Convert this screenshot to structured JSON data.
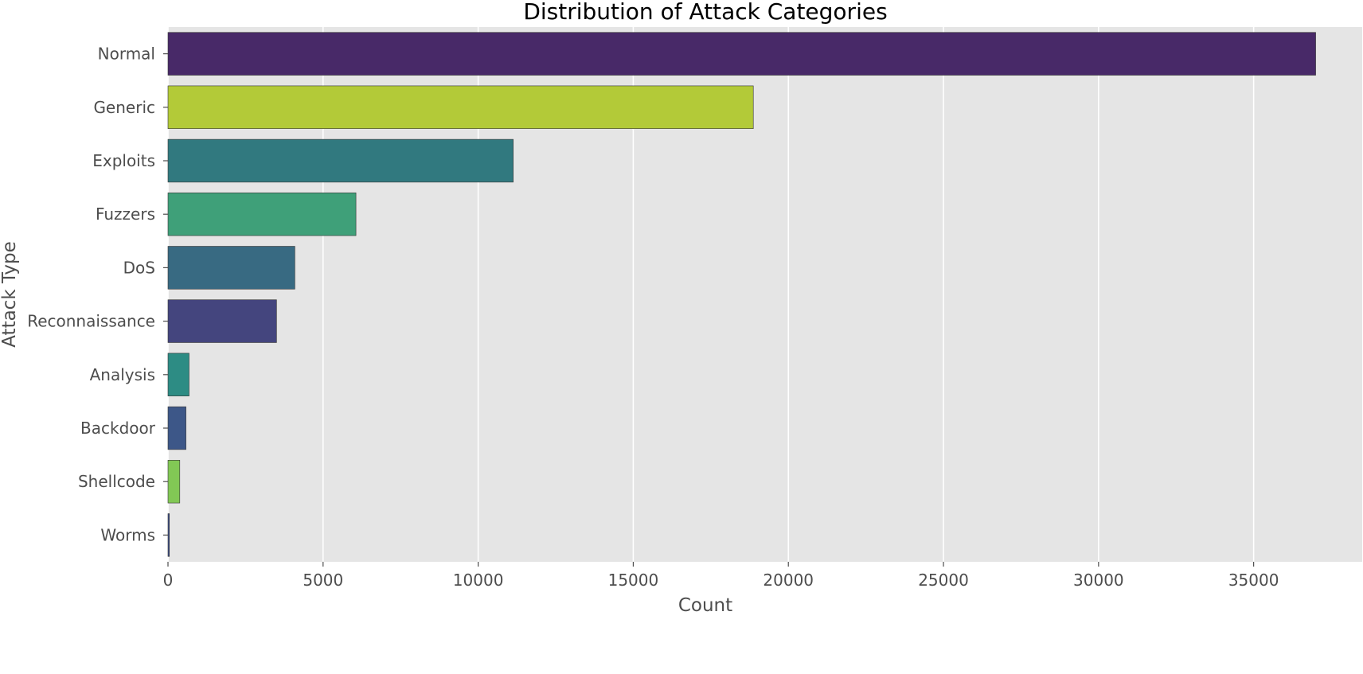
{
  "chart_data": {
    "type": "bar",
    "orientation": "horizontal",
    "title": "Distribution of Attack Categories",
    "xlabel": "Count",
    "ylabel": "Attack Type",
    "categories": [
      "Normal",
      "Generic",
      "Exploits",
      "Fuzzers",
      "DoS",
      "Reconnaissance",
      "Analysis",
      "Backdoor",
      "Shellcode",
      "Worms"
    ],
    "values": [
      37000,
      18870,
      11130,
      6060,
      4090,
      3500,
      680,
      580,
      380,
      44
    ],
    "colors": [
      "#482968",
      "#b3ca38",
      "#31797f",
      "#3fa079",
      "#386a82",
      "#44457e",
      "#2d8c84",
      "#3d5788",
      "#82c855",
      "#3c4e8a"
    ],
    "x_ticks": [
      0,
      5000,
      10000,
      15000,
      20000,
      25000,
      30000,
      35000
    ],
    "xlim": [
      0,
      38500
    ],
    "grid": true,
    "style": "ggplot",
    "background": "#e5e5e5"
  }
}
